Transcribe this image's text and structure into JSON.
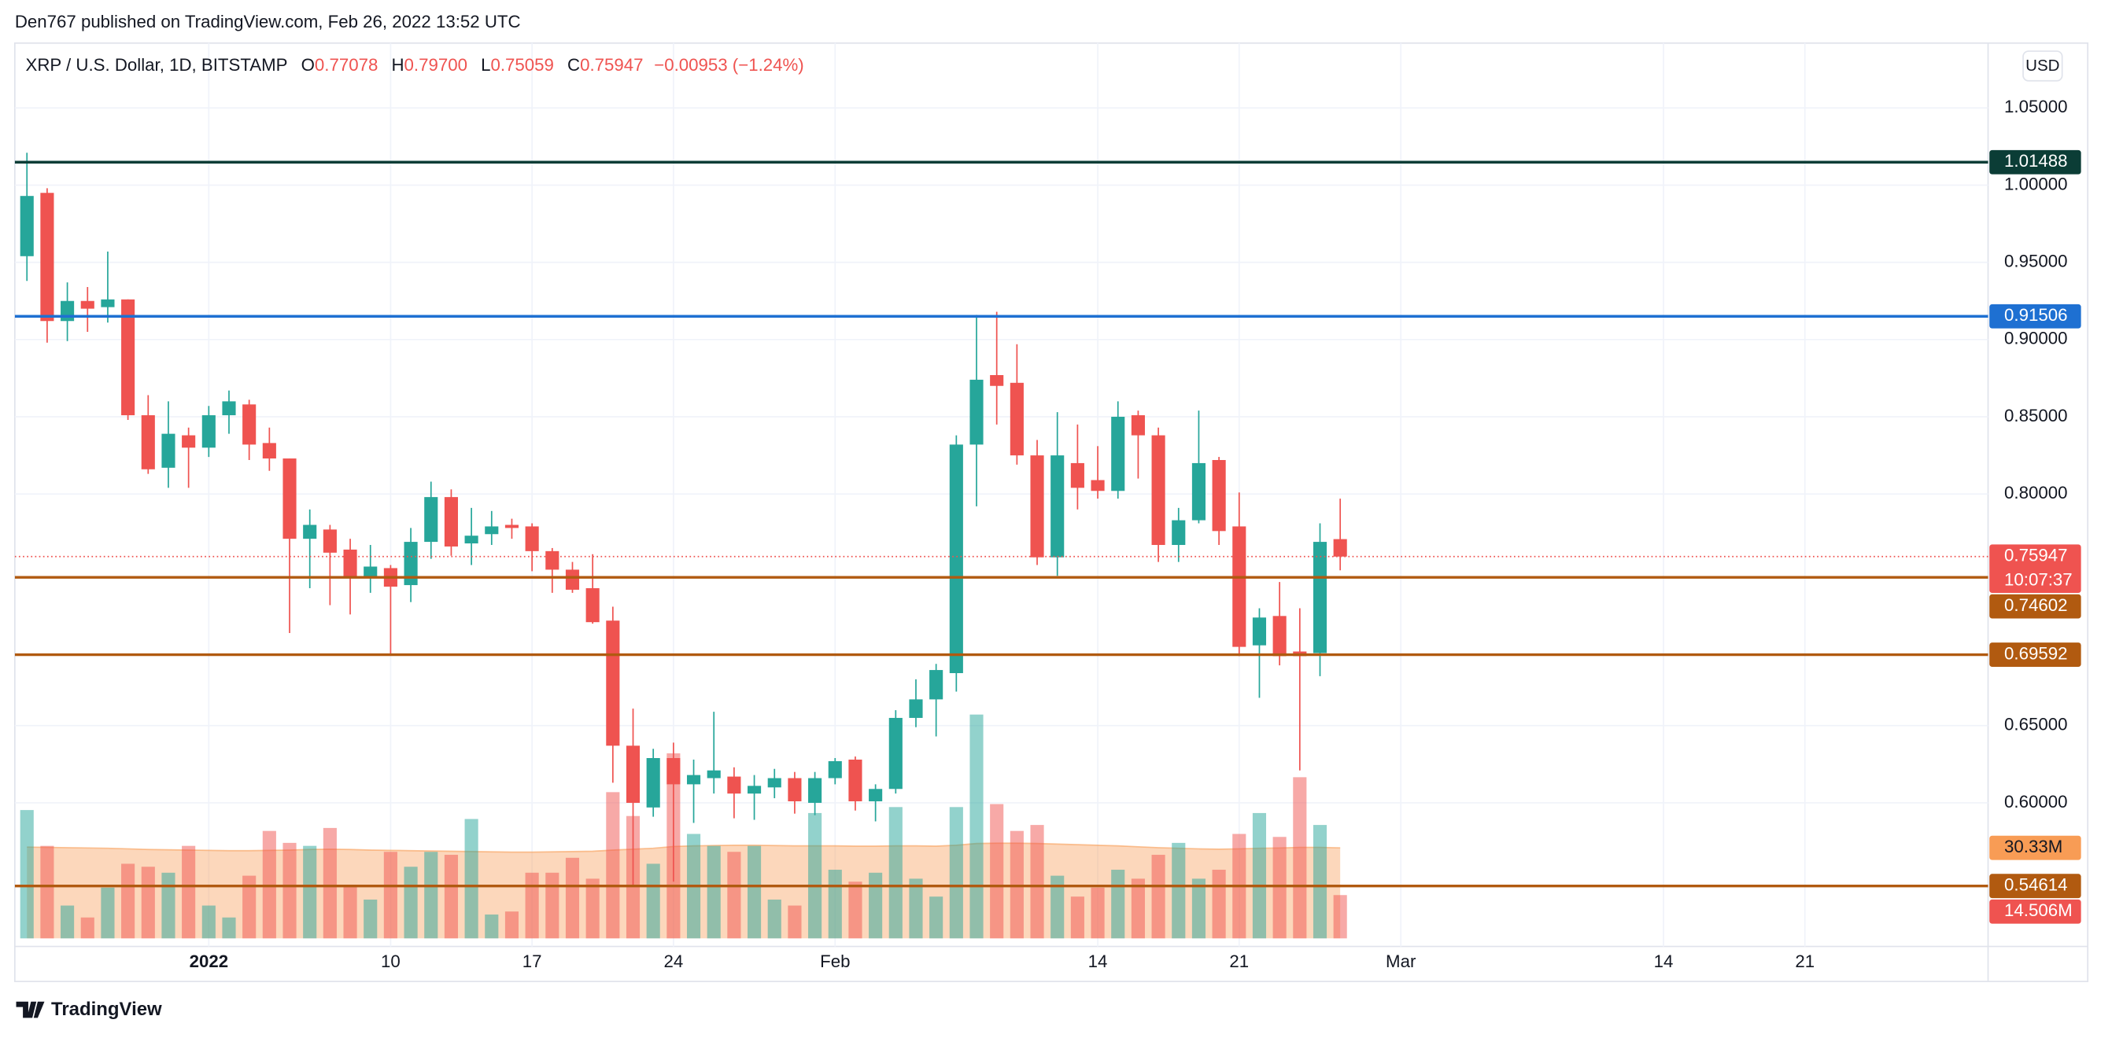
{
  "header": {
    "text": "Den767 published on TradingView.com, Feb 26, 2022 13:52 UTC"
  },
  "footer": {
    "brand": "TradingView"
  },
  "chart_data": {
    "type": "candlestick",
    "title": "XRP / U.S. Dollar, 1D, BITSTAMP",
    "ohlc_legend": [
      {
        "key": "O",
        "value": 0.77078
      },
      {
        "key": "H",
        "value": 0.797,
        "label": "0.79700"
      },
      {
        "key": "L",
        "value": 0.75059
      },
      {
        "key": "C",
        "value": 0.75947
      }
    ],
    "change_text": "−0.00953 (−1.24%)",
    "currency": "USD",
    "countdown": "10:07:37",
    "colors": {
      "up": "#26a69a",
      "down": "#ef5350"
    },
    "x": [
      "2021-12-23",
      "2021-12-24",
      "2021-12-25",
      "2021-12-26",
      "2021-12-27",
      "2021-12-28",
      "2021-12-29",
      "2021-12-30",
      "2021-12-31",
      "2022-01-01",
      "2022-01-02",
      "2022-01-03",
      "2022-01-04",
      "2022-01-05",
      "2022-01-06",
      "2022-01-07",
      "2022-01-08",
      "2022-01-09",
      "2022-01-10",
      "2022-01-11",
      "2022-01-12",
      "2022-01-13",
      "2022-01-14",
      "2022-01-15",
      "2022-01-16",
      "2022-01-17",
      "2022-01-18",
      "2022-01-19",
      "2022-01-20",
      "2022-01-21",
      "2022-01-22",
      "2022-01-23",
      "2022-01-24",
      "2022-01-25",
      "2022-01-26",
      "2022-01-27",
      "2022-01-28",
      "2022-01-29",
      "2022-01-30",
      "2022-01-31",
      "2022-02-01",
      "2022-02-02",
      "2022-02-03",
      "2022-02-04",
      "2022-02-05",
      "2022-02-06",
      "2022-02-07",
      "2022-02-08",
      "2022-02-09",
      "2022-02-10",
      "2022-02-11",
      "2022-02-12",
      "2022-02-13",
      "2022-02-14",
      "2022-02-15",
      "2022-02-16",
      "2022-02-17",
      "2022-02-18",
      "2022-02-19",
      "2022-02-20",
      "2022-02-21",
      "2022-02-22",
      "2022-02-23",
      "2022-02-24",
      "2022-02-25",
      "2022-02-26"
    ],
    "open": [
      0.954,
      0.995,
      0.912,
      0.925,
      0.921,
      0.926,
      0.851,
      0.817,
      0.838,
      0.83,
      0.851,
      0.858,
      0.833,
      0.823,
      0.771,
      0.777,
      0.764,
      0.746,
      0.752,
      0.741,
      0.769,
      0.798,
      0.768,
      0.774,
      0.78,
      0.779,
      0.763,
      0.751,
      0.739,
      0.718,
      0.637,
      0.597,
      0.629,
      0.612,
      0.616,
      0.617,
      0.606,
      0.61,
      0.616,
      0.6,
      0.616,
      0.628,
      0.601,
      0.609,
      0.655,
      0.667,
      0.684,
      0.832,
      0.877,
      0.872,
      0.825,
      0.759,
      0.82,
      0.809,
      0.802,
      0.851,
      0.838,
      0.767,
      0.783,
      0.822,
      0.779,
      0.702,
      0.721,
      0.698,
      0.697,
      0.77078
    ],
    "high": [
      1.021,
      0.998,
      0.937,
      0.934,
      0.957,
      0.926,
      0.864,
      0.86,
      0.843,
      0.857,
      0.867,
      0.861,
      0.843,
      0.823,
      0.79,
      0.78,
      0.771,
      0.767,
      0.754,
      0.778,
      0.808,
      0.803,
      0.791,
      0.789,
      0.784,
      0.781,
      0.765,
      0.756,
      0.761,
      0.727,
      0.661,
      0.635,
      0.639,
      0.628,
      0.659,
      0.623,
      0.618,
      0.622,
      0.62,
      0.62,
      0.629,
      0.63,
      0.612,
      0.66,
      0.68,
      0.69,
      0.838,
      0.916,
      0.918,
      0.897,
      0.835,
      0.853,
      0.845,
      0.831,
      0.86,
      0.854,
      0.843,
      0.791,
      0.854,
      0.824,
      0.801,
      0.726,
      0.743,
      0.726,
      0.781,
      0.797
    ],
    "low": [
      0.938,
      0.898,
      0.899,
      0.905,
      0.911,
      0.848,
      0.813,
      0.804,
      0.804,
      0.824,
      0.839,
      0.822,
      0.815,
      0.71,
      0.739,
      0.728,
      0.722,
      0.736,
      0.696,
      0.73,
      0.758,
      0.76,
      0.754,
      0.767,
      0.771,
      0.75,
      0.736,
      0.736,
      0.716,
      0.613,
      0.547,
      0.591,
      0.549,
      0.587,
      0.606,
      0.59,
      0.589,
      0.603,
      0.593,
      0.592,
      0.612,
      0.595,
      0.588,
      0.606,
      0.649,
      0.643,
      0.672,
      0.792,
      0.845,
      0.819,
      0.754,
      0.747,
      0.79,
      0.797,
      0.797,
      0.81,
      0.756,
      0.756,
      0.781,
      0.767,
      0.695,
      0.668,
      0.689,
      0.621,
      0.682,
      0.75059
    ],
    "close": [
      0.993,
      0.912,
      0.925,
      0.92,
      0.926,
      0.851,
      0.816,
      0.839,
      0.83,
      0.851,
      0.86,
      0.832,
      0.823,
      0.771,
      0.78,
      0.762,
      0.746,
      0.753,
      0.74,
      0.769,
      0.798,
      0.766,
      0.773,
      0.779,
      0.778,
      0.763,
      0.751,
      0.738,
      0.717,
      0.637,
      0.6,
      0.629,
      0.612,
      0.618,
      0.621,
      0.606,
      0.611,
      0.616,
      0.601,
      0.616,
      0.627,
      0.601,
      0.609,
      0.655,
      0.667,
      0.686,
      0.832,
      0.874,
      0.87,
      0.825,
      0.759,
      0.825,
      0.804,
      0.802,
      0.85,
      0.838,
      0.767,
      0.783,
      0.82,
      0.776,
      0.701,
      0.72,
      0.695,
      0.695,
      0.769,
      0.75947
    ],
    "volume": [
      43000000,
      31000000,
      11000000,
      7000000,
      17000000,
      25000000,
      24000000,
      22000000,
      31000000,
      11000000,
      7000000,
      21000000,
      36000000,
      32000000,
      31000000,
      37000000,
      18000000,
      13000000,
      29000000,
      24000000,
      29000000,
      28000000,
      40000000,
      8000000,
      9000000,
      22000000,
      22000000,
      27000000,
      20000000,
      49000000,
      41000000,
      25000000,
      62000000,
      35000000,
      31000000,
      29000000,
      31000000,
      13000000,
      11000000,
      42000000,
      23000000,
      19000000,
      22000000,
      44000000,
      20000000,
      14000000,
      44000000,
      75000000,
      45000000,
      36000000,
      38000000,
      21000000,
      14000000,
      17000000,
      23000000,
      20000000,
      28000000,
      32000000,
      20000000,
      23000000,
      35000000,
      42000000,
      34000000,
      54000000,
      38000000,
      14506000
    ],
    "volume_label": "14.506M",
    "volume_ma": [
      30600000,
      30500000,
      30400000,
      30300000,
      30200000,
      30000000,
      29800000,
      29700000,
      29600000,
      29500000,
      29400000,
      29400000,
      29500000,
      29600000,
      29800000,
      29900000,
      29800000,
      29600000,
      29500000,
      29400000,
      29300000,
      29200000,
      29100000,
      29000000,
      28900000,
      28900000,
      29000000,
      29100000,
      29200000,
      29600000,
      29900000,
      30200000,
      30800000,
      31000000,
      31100000,
      31200000,
      31200000,
      31100000,
      31000000,
      31000000,
      31000000,
      30900000,
      30900000,
      31000000,
      31000000,
      30900000,
      31200000,
      31800000,
      31900000,
      31900000,
      31800000,
      31600000,
      31400000,
      31200000,
      31000000,
      30700000,
      30400000,
      30200000,
      30000000,
      29900000,
      30000000,
      30200000,
      30300000,
      30500000,
      30500000,
      30330000
    ],
    "volume_ma_label": "30.33M",
    "volume_ma_color": "#f89c55",
    "volume_lim": [
      0,
      300000000
    ],
    "hlines": [
      {
        "value": 1.01488,
        "color": "#0b3d36"
      },
      {
        "value": 0.91506,
        "color": "#1e70d2"
      },
      {
        "value": 0.74602,
        "color": "#b15a10"
      },
      {
        "value": 0.69592,
        "color": "#b15a10"
      },
      {
        "value": 0.54614,
        "color": "#b15a10"
      }
    ],
    "xlim": [
      "2021-12-22",
      "2022-03-30"
    ],
    "xticks": [
      {
        "value": "2022-01-01",
        "label": "2022"
      },
      {
        "value": "2022-01-10",
        "label": "10"
      },
      {
        "value": "2022-01-17",
        "label": "17"
      },
      {
        "value": "2022-01-24",
        "label": "24"
      },
      {
        "value": "2022-02-01",
        "label": "Feb"
      },
      {
        "value": "2022-02-14",
        "label": "14"
      },
      {
        "value": "2022-02-21",
        "label": "21"
      },
      {
        "value": "2022-03-01",
        "label": "Mar"
      },
      {
        "value": "2022-03-14",
        "label": "14"
      },
      {
        "value": "2022-03-21",
        "label": "21"
      }
    ],
    "ylim": [
      0.507,
      1.092
    ],
    "yticks": [
      {
        "value": 1.05,
        "label": "1.05000"
      },
      {
        "value": 1.0,
        "label": "1.00000"
      },
      {
        "value": 0.95,
        "label": "0.95000"
      },
      {
        "value": 0.9,
        "label": "0.90000"
      },
      {
        "value": 0.85,
        "label": "0.85000"
      },
      {
        "value": 0.8,
        "label": "0.80000"
      },
      {
        "value": 0.65,
        "label": "0.65000"
      },
      {
        "value": 0.6,
        "label": "0.60000"
      }
    ],
    "grid": true
  }
}
